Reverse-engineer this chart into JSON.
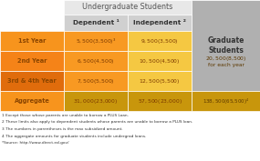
{
  "title": "Undergraduate Students",
  "col_labels": [
    "Dependent ¹",
    "Independent ²"
  ],
  "grad_header": "Graduate\nStudents",
  "rows": [
    [
      "1st Year",
      "$5,500 ($3,500)³",
      "$9,500 ($3,500)"
    ],
    [
      "2nd Year",
      "$6,500 ($4,500)",
      "$10,500 ($4,500)"
    ],
    [
      "3rd & 4th Year",
      "$7,500 ($5,500)",
      "$12,500 ($5,500)"
    ],
    [
      "Aggregate",
      "$31,000 ($23,000)",
      "$57,500 ($23,000)"
    ]
  ],
  "grad_values": [
    "",
    "$20,500 ($8,500)\nfor each year",
    "",
    "$138,500 ($65,500)⁴"
  ],
  "footnotes": [
    "1 Except those whose parents are unable to borrow a PLUS Loan.",
    "2 These limits also apply to dependent students whose parents are unable to borrow a PLUS loan.",
    "3 The numbers in parentheses is the max subsidized amount.",
    "4 The aggregate amounts for graduate students include undergrad loans.",
    "*Source: http://www.direct.ed.gov/"
  ],
  "col0_bg": "#ffffff",
  "header_title_bg": "#e8e8e8",
  "header_sub_bg": "#d0d0d0",
  "grad_header_bg": "#b0b0b0",
  "row_colors": [
    [
      "#f7941d",
      "#f89922",
      "#f5c842"
    ],
    [
      "#f58318",
      "#f89922",
      "#f5c842"
    ],
    [
      "#e06c0c",
      "#f89922",
      "#f5c842"
    ],
    [
      "#f7941d",
      "#c8960c",
      "#c8960c"
    ]
  ],
  "grad_row_colors": [
    "#b8860b",
    "#b8860b",
    "#b8860b",
    "#b8860b"
  ],
  "text_color_row0": "#8b4500",
  "text_color_data": "#7a3800",
  "text_color_grad": "#5c3800",
  "text_color_header": "#555555",
  "border_color": "#ffffff"
}
